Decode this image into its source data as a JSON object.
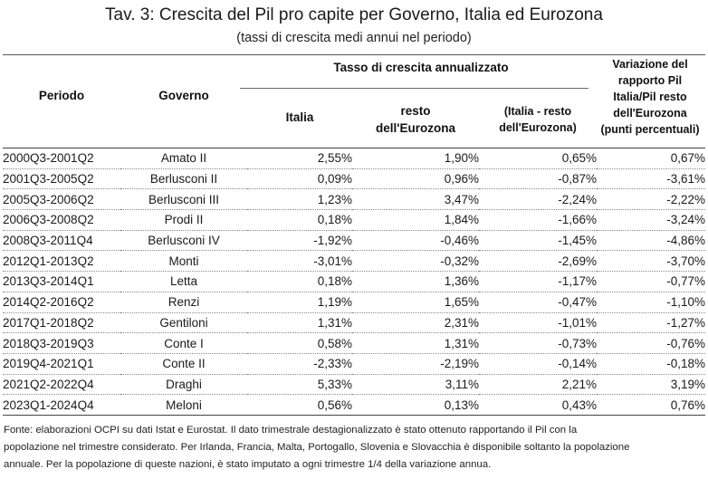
{
  "title": "Tav. 3: Crescita del Pil pro capite per Governo, Italia ed Eurozona",
  "subtitle": "(tassi di crescita medi annui nel periodo)",
  "headers": {
    "periodo": "Periodo",
    "governo": "Governo",
    "group": "Tasso di crescita annualizzato",
    "italia": "Italia",
    "resto_line1": "resto",
    "resto_line2": "dell'Eurozona",
    "diff_line1": "(Italia - resto",
    "diff_line2": "dell'Eurozona)",
    "var_line1": "Variazione del",
    "var_line2": "rapporto Pil",
    "var_line3": "Italia/Pil resto",
    "var_line4": "dell'Eurozona",
    "var_line5": "(punti percentuali)"
  },
  "rows": [
    {
      "periodo": "2000Q3-2001Q2",
      "governo": "Amato II",
      "italia": "2,55%",
      "resto": "1,90%",
      "diff": "0,65%",
      "var": "0,67%"
    },
    {
      "periodo": "2001Q3-2005Q2",
      "governo": "Berlusconi II",
      "italia": "0,09%",
      "resto": "0,96%",
      "diff": "-0,87%",
      "var": "-3,61%"
    },
    {
      "periodo": "2005Q3-2006Q2",
      "governo": "Berlusconi III",
      "italia": "1,23%",
      "resto": "3,47%",
      "diff": "-2,24%",
      "var": "-2,22%"
    },
    {
      "periodo": "2006Q3-2008Q2",
      "governo": "Prodi II",
      "italia": "0,18%",
      "resto": "1,84%",
      "diff": "-1,66%",
      "var": "-3,24%"
    },
    {
      "periodo": "2008Q3-2011Q4",
      "governo": "Berlusconi IV",
      "italia": "-1,92%",
      "resto": "-0,46%",
      "diff": "-1,45%",
      "var": "-4,86%"
    },
    {
      "periodo": "2012Q1-2013Q2",
      "governo": "Monti",
      "italia": "-3,01%",
      "resto": "-0,32%",
      "diff": "-2,69%",
      "var": "-3,70%"
    },
    {
      "periodo": "2013Q3-2014Q1",
      "governo": "Letta",
      "italia": "0,18%",
      "resto": "1,36%",
      "diff": "-1,17%",
      "var": "-0,77%"
    },
    {
      "periodo": "2014Q2-2016Q2",
      "governo": "Renzi",
      "italia": "1,19%",
      "resto": "1,65%",
      "diff": "-0,47%",
      "var": "-1,10%"
    },
    {
      "periodo": "2017Q1-2018Q2",
      "governo": "Gentiloni",
      "italia": "1,31%",
      "resto": "2,31%",
      "diff": "-1,01%",
      "var": "-1,27%"
    },
    {
      "periodo": "2018Q3-2019Q3",
      "governo": "Conte I",
      "italia": "0,58%",
      "resto": "1,31%",
      "diff": "-0,73%",
      "var": "-0,76%"
    },
    {
      "periodo": "2019Q4-2021Q1",
      "governo": "Conte II",
      "italia": "-2,33%",
      "resto": "-2,19%",
      "diff": "-0,14%",
      "var": "-0,18%"
    },
    {
      "periodo": "2021Q2-2022Q4",
      "governo": "Draghi",
      "italia": "5,33%",
      "resto": "3,11%",
      "diff": "2,21%",
      "var": "3,19%"
    },
    {
      "periodo": "2023Q1-2024Q4",
      "governo": "Meloni",
      "italia": "0,56%",
      "resto": "0,13%",
      "diff": "0,43%",
      "var": "0,76%"
    }
  ],
  "note": {
    "line1": "Fonte: elaborazioni OCPI su dati Istat e Eurostat. Il dato trimestrale destagionalizzato è stato ottenuto rapportando il Pil con la",
    "line2": "popolazione nel trimestre considerato. Per Irlanda, Francia, Malta, Portogallo, Slovenia e Slovacchia è disponibile soltanto la popolazione",
    "line3": "annuale. Per la popolazione di queste nazioni, è stato imputato a ogni trimestre 1/4 della variazione annua."
  }
}
